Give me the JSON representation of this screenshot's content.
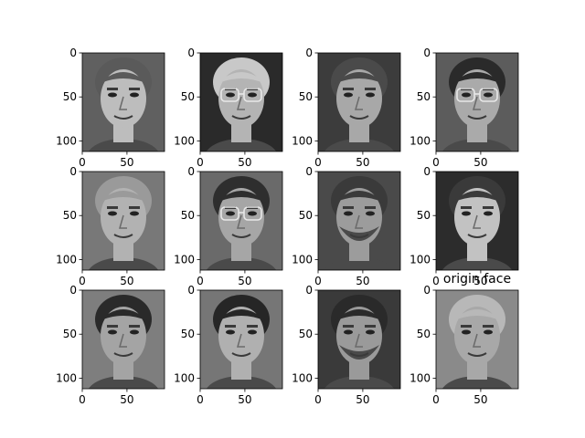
{
  "figure": {
    "title": "origin face",
    "axis": {
      "x_ticks": [
        0,
        50
      ],
      "y_ticks": [
        0,
        50,
        100
      ],
      "x_range": [
        0,
        92
      ],
      "y_range": [
        112,
        0
      ]
    },
    "grid": {
      "rows": 3,
      "cols": 4
    },
    "panels": [
      {
        "row": 0,
        "col": 0,
        "bg": "#606060",
        "skin": "#bdbdbd",
        "hair": "#5a5a5a",
        "glasses": false,
        "beard": false
      },
      {
        "row": 0,
        "col": 1,
        "bg": "#2a2a2a",
        "skin": "#b4b4b4",
        "hair": "#c8c8c8",
        "glasses": true,
        "beard": false
      },
      {
        "row": 0,
        "col": 2,
        "bg": "#3c3c3c",
        "skin": "#a8a8a8",
        "hair": "#4a4a4a",
        "glasses": false,
        "beard": false
      },
      {
        "row": 0,
        "col": 3,
        "bg": "#5c5c5c",
        "skin": "#aaaaaa",
        "hair": "#2a2a2a",
        "glasses": true,
        "beard": false
      },
      {
        "row": 1,
        "col": 0,
        "bg": "#787878",
        "skin": "#b2b2b2",
        "hair": "#9a9a9a",
        "glasses": false,
        "beard": false
      },
      {
        "row": 1,
        "col": 1,
        "bg": "#6a6a6a",
        "skin": "#a6a6a6",
        "hair": "#2e2e2e",
        "glasses": true,
        "beard": false
      },
      {
        "row": 1,
        "col": 2,
        "bg": "#4a4a4a",
        "skin": "#9c9c9c",
        "hair": "#3a3a3a",
        "glasses": false,
        "beard": true
      },
      {
        "row": 1,
        "col": 3,
        "bg": "#2c2c2c",
        "skin": "#c2c2c2",
        "hair": "#3a3a3a",
        "glasses": false,
        "beard": false
      },
      {
        "row": 2,
        "col": 0,
        "bg": "#7e7e7e",
        "skin": "#a4a4a4",
        "hair": "#2a2a2a",
        "glasses": false,
        "beard": false
      },
      {
        "row": 2,
        "col": 1,
        "bg": "#767676",
        "skin": "#b0b0b0",
        "hair": "#262626",
        "glasses": false,
        "beard": false
      },
      {
        "row": 2,
        "col": 2,
        "bg": "#3a3a3a",
        "skin": "#9a9a9a",
        "hair": "#2a2a2a",
        "glasses": false,
        "beard": true
      },
      {
        "row": 2,
        "col": 3,
        "bg": "#8a8a8a",
        "skin": "#a8a8a8",
        "hair": "#b8b8b8",
        "glasses": false,
        "beard": false
      }
    ]
  }
}
